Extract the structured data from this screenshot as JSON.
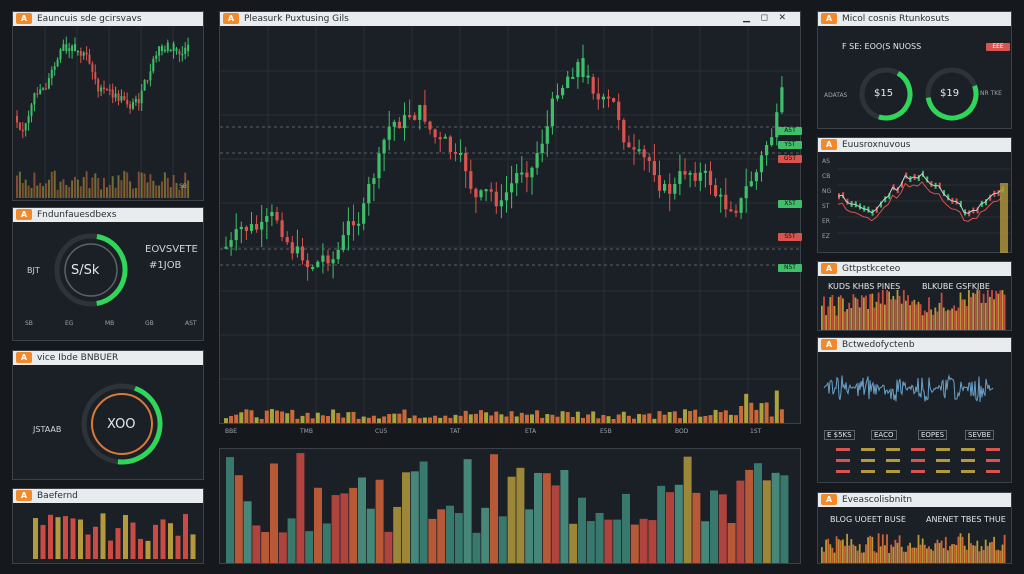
{
  "colors": {
    "up": "#3fbf6a",
    "down": "#d9534f",
    "accent": "#f08a2b",
    "ring": "#2fd65a",
    "grid": "#2a3036"
  },
  "main": {
    "title": "Pleasurk Puxtusing Gils",
    "x_labels": [
      "BBE",
      "TMB",
      "CU5",
      "TAT",
      "ETA",
      "E5B",
      "BOD",
      "1ST"
    ],
    "price_tags": [
      "A5T",
      "Y5T",
      "G5T",
      "X5T",
      "S5T",
      "N5T"
    ]
  },
  "sparkline_panel": {
    "title": "Eauncuis sde gcirsvavs",
    "footer": "SB"
  },
  "gauge1": {
    "title": "Fndunfauesdbexs",
    "center": "S/Sk",
    "side_top": "EOVSVETE",
    "side_bottom": "#1JOB",
    "left": "BJT",
    "axis": [
      "SB",
      "EG",
      "MB",
      "GB",
      "AST"
    ]
  },
  "gauge2": {
    "title": "vice Ibde BNBUER",
    "center": "XOO",
    "left": "JSTAAB"
  },
  "histo_small": {
    "title": "Baefernd"
  },
  "right_top": {
    "title": "Micol cosnis Rtunkosuts",
    "header": "F SE: EOO(S NUOSS",
    "legend": "EEE",
    "gauge_a": "$15",
    "gauge_b": "$19",
    "left_a": "ADATAS",
    "right_b": "NR TKE"
  },
  "right_chart": {
    "title": "Euusroxnuvous",
    "ylabels": [
      "AS",
      "CB",
      "NG",
      "ST",
      "ER",
      "EZ"
    ]
  },
  "right_hist": {
    "title": "Gttpstkceteo",
    "left": "KUDS KHBS PINES",
    "right": "BLKUBE GSFKJBE"
  },
  "right_wave": {
    "title": "Bctwedofyctenb",
    "stats": [
      "E $5KS",
      "EACO",
      "EOPES",
      "SEVBE"
    ]
  },
  "right_bottom": {
    "title": "Eveascolisbnitn",
    "left": "BLOG UOEET BUSE",
    "right": "ANENET TBES THUE"
  }
}
